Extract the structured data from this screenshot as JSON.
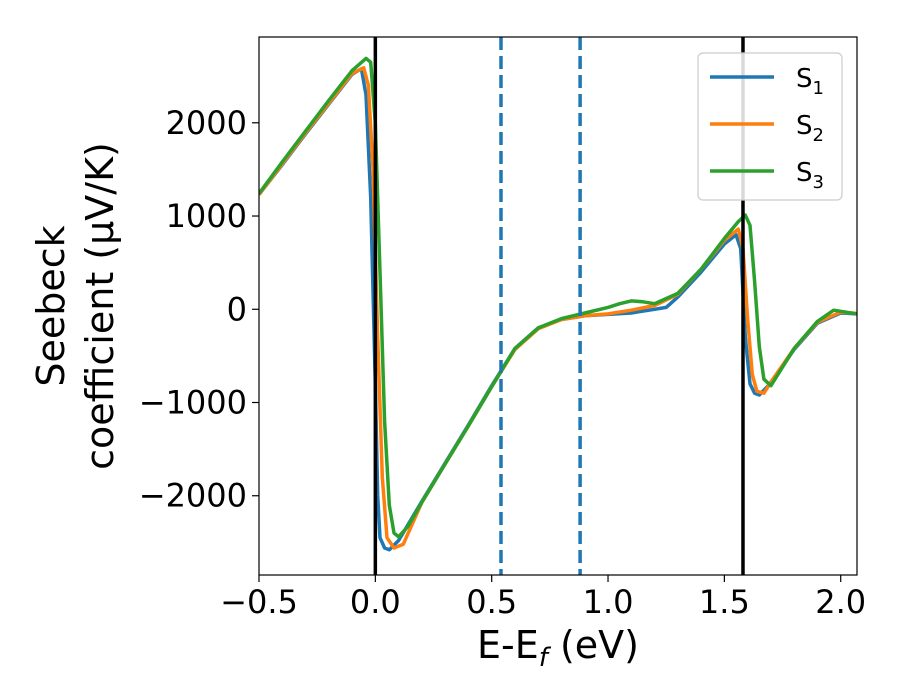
{
  "chart_data": {
    "type": "line",
    "xlabel": "E-E",
    "xlabel_sub": "f",
    "xlabel_unit": " (eV)",
    "ylabel_line1": "Seebeck",
    "ylabel_line2": "coefficient  (μV/K)",
    "xlim": [
      -0.5,
      2.07
    ],
    "ylim": [
      -2850,
      2920
    ],
    "xticks": [
      -0.5,
      0.0,
      0.5,
      1.0,
      1.5,
      2.0
    ],
    "xtick_labels": [
      "−0.5",
      "0.0",
      "0.5",
      "1.0",
      "1.5",
      "2.0"
    ],
    "yticks": [
      -2000,
      -1000,
      0,
      1000,
      2000
    ],
    "ytick_labels": [
      "−2000",
      "−1000",
      "0",
      "1000",
      "2000"
    ],
    "grid": false,
    "legend_position": "top-right",
    "vlines": [
      {
        "x": 0.0,
        "style": "solid",
        "color": "#000000"
      },
      {
        "x": 1.58,
        "style": "solid",
        "color": "#000000"
      },
      {
        "x": 0.54,
        "style": "dashed",
        "color": "#1f77b4"
      },
      {
        "x": 0.88,
        "style": "dashed",
        "color": "#1f77b4"
      }
    ],
    "series": [
      {
        "name": "S",
        "sub": "1",
        "color": "#1f77b4",
        "x": [
          -0.5,
          -0.4,
          -0.3,
          -0.2,
          -0.1,
          -0.06,
          -0.04,
          -0.02,
          0.0,
          0.01,
          0.02,
          0.04,
          0.06,
          0.1,
          0.2,
          0.3,
          0.4,
          0.5,
          0.6,
          0.7,
          0.8,
          0.85,
          0.9,
          1.0,
          1.1,
          1.2,
          1.25,
          1.3,
          1.4,
          1.5,
          1.55,
          1.57,
          1.59,
          1.61,
          1.63,
          1.65,
          1.7,
          1.8,
          1.9,
          2.0,
          2.07
        ],
        "y": [
          1230,
          1550,
          1880,
          2200,
          2520,
          2580,
          2300,
          1200,
          -800,
          -2000,
          -2450,
          -2560,
          -2580,
          -2480,
          -2060,
          -1650,
          -1240,
          -820,
          -420,
          -200,
          -110,
          -90,
          -70,
          -55,
          -40,
          0,
          20,
          130,
          400,
          700,
          800,
          650,
          -300,
          -800,
          -900,
          -920,
          -790,
          -430,
          -150,
          -40,
          -50
        ]
      },
      {
        "name": "S",
        "sub": "2",
        "color": "#ff7f0e",
        "x": [
          -0.5,
          -0.4,
          -0.3,
          -0.2,
          -0.1,
          -0.05,
          -0.03,
          -0.01,
          0.01,
          0.03,
          0.05,
          0.08,
          0.12,
          0.2,
          0.3,
          0.4,
          0.5,
          0.6,
          0.7,
          0.8,
          0.85,
          0.9,
          1.0,
          1.1,
          1.2,
          1.3,
          1.4,
          1.5,
          1.56,
          1.58,
          1.6,
          1.62,
          1.64,
          1.67,
          1.7,
          1.8,
          1.9,
          2.0,
          2.07
        ],
        "y": [
          1230,
          1560,
          1890,
          2210,
          2530,
          2590,
          2400,
          1500,
          -300,
          -1800,
          -2450,
          -2560,
          -2520,
          -2070,
          -1660,
          -1250,
          -830,
          -430,
          -210,
          -110,
          -90,
          -70,
          -50,
          -10,
          40,
          160,
          430,
          740,
          860,
          650,
          -100,
          -700,
          -880,
          -900,
          -780,
          -420,
          -140,
          -30,
          -45
        ]
      },
      {
        "name": "S",
        "sub": "3",
        "color": "#2ca02c",
        "x": [
          -0.5,
          -0.4,
          -0.3,
          -0.2,
          -0.1,
          -0.04,
          -0.02,
          0.0,
          0.02,
          0.04,
          0.06,
          0.08,
          0.1,
          0.14,
          0.2,
          0.3,
          0.4,
          0.5,
          0.6,
          0.7,
          0.8,
          0.85,
          0.9,
          1.0,
          1.05,
          1.1,
          1.15,
          1.2,
          1.3,
          1.4,
          1.5,
          1.56,
          1.59,
          1.61,
          1.63,
          1.65,
          1.67,
          1.7,
          1.8,
          1.9,
          1.97,
          2.07
        ],
        "y": [
          1240,
          1580,
          1910,
          2240,
          2560,
          2690,
          2650,
          2000,
          400,
          -1200,
          -2100,
          -2400,
          -2440,
          -2330,
          -2070,
          -1660,
          -1250,
          -830,
          -420,
          -200,
          -100,
          -70,
          -40,
          20,
          60,
          90,
          80,
          60,
          170,
          430,
          760,
          940,
          1010,
          900,
          300,
          -400,
          -750,
          -820,
          -420,
          -130,
          -10,
          -50
        ]
      }
    ]
  }
}
